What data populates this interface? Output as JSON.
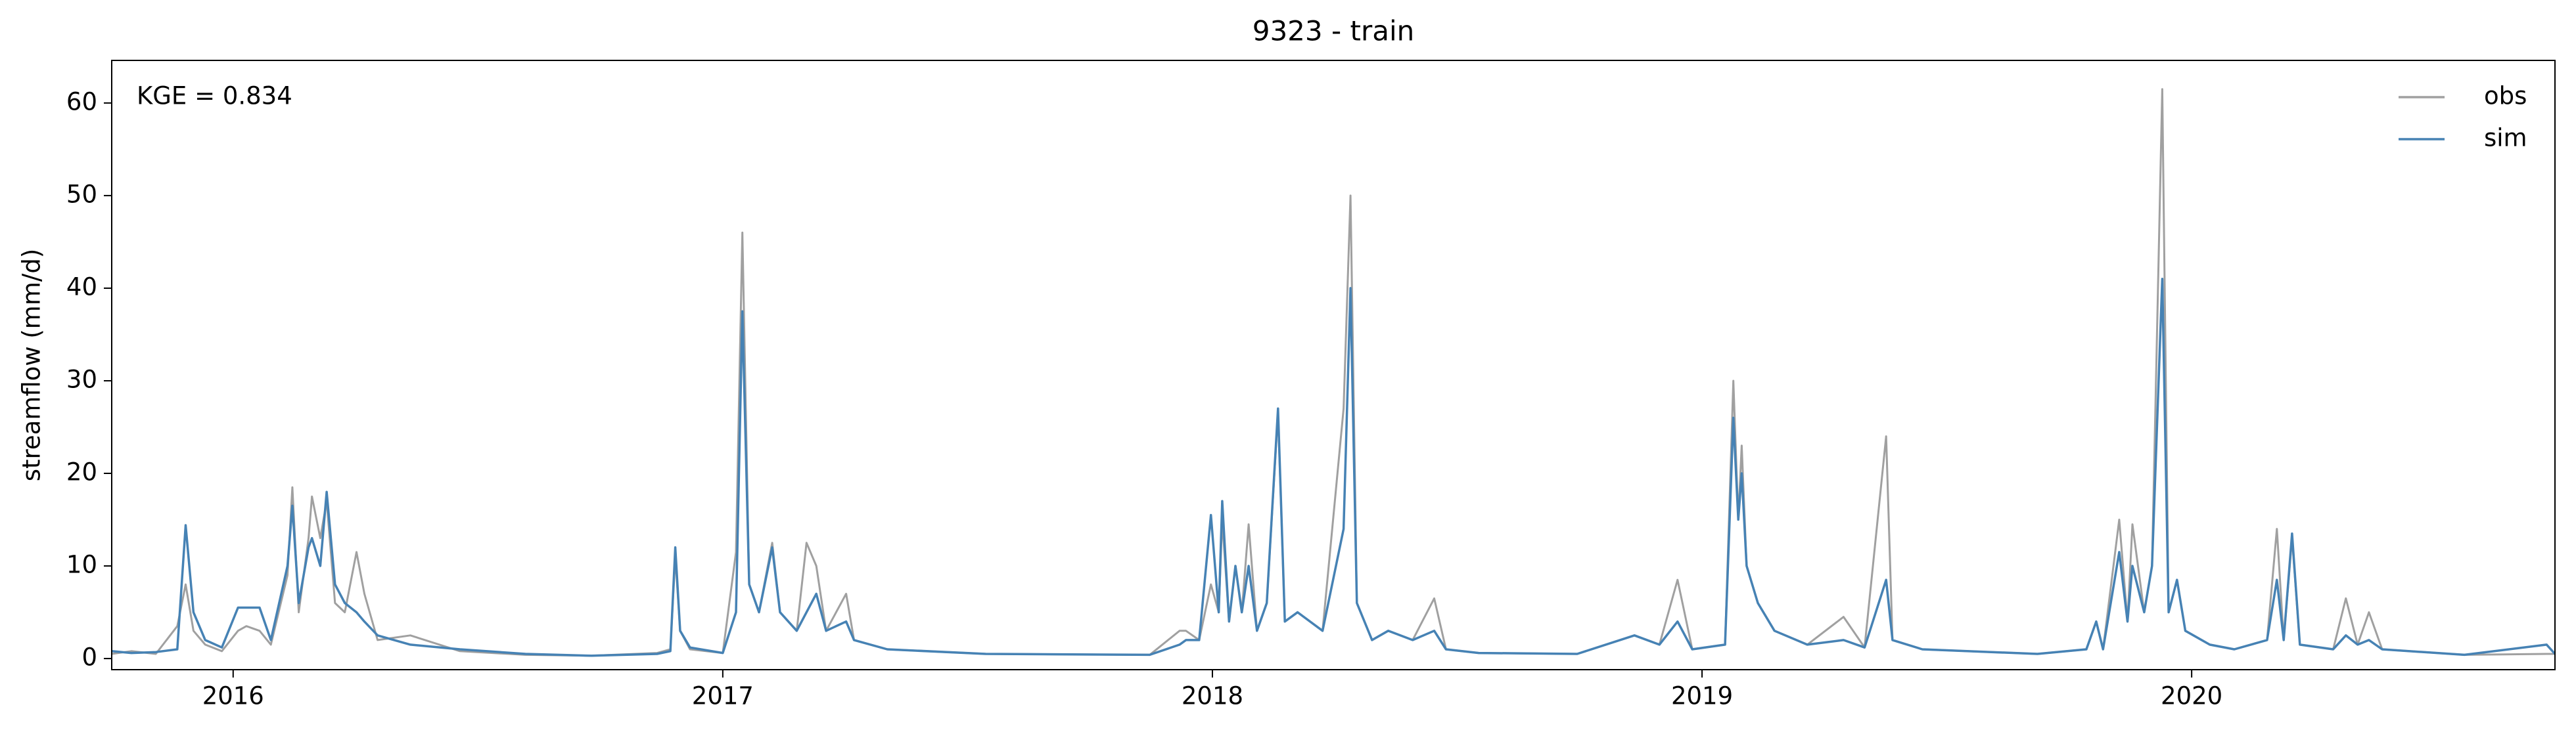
{
  "chart_data": {
    "type": "line",
    "title": "9323 - train",
    "ylabel": "streamflow (mm/d)",
    "annotation": "KGE = 0.834",
    "xlim": [
      2015.752,
      2020.742
    ],
    "xticks": [
      2016,
      2017,
      2018,
      2019,
      2020
    ],
    "ylim": [
      -1.2,
      64.6
    ],
    "yticks": [
      0,
      10,
      20,
      30,
      40,
      50,
      60
    ],
    "legend": "upper right",
    "x": [
      2015.752,
      2015.792,
      2015.842,
      2015.886,
      2015.903,
      2015.919,
      2015.943,
      2015.977,
      2016.01,
      2016.027,
      2016.054,
      2016.077,
      2016.111,
      2016.121,
      2016.134,
      2016.154,
      2016.161,
      2016.178,
      2016.191,
      2016.208,
      2016.228,
      2016.252,
      2016.268,
      2016.295,
      2016.362,
      2016.463,
      2016.597,
      2016.732,
      2016.866,
      2016.893,
      2016.903,
      2016.913,
      2016.933,
      2017.0,
      2017.027,
      2017.04,
      2017.054,
      2017.074,
      2017.101,
      2017.117,
      2017.151,
      2017.171,
      2017.191,
      2017.211,
      2017.252,
      2017.268,
      2017.336,
      2017.537,
      2017.872,
      2017.933,
      2017.946,
      2017.973,
      2017.997,
      2018.013,
      2018.02,
      2018.034,
      2018.047,
      2018.06,
      2018.074,
      2018.091,
      2018.111,
      2018.134,
      2018.148,
      2018.174,
      2018.225,
      2018.268,
      2018.282,
      2018.295,
      2018.326,
      2018.359,
      2018.409,
      2018.453,
      2018.477,
      2018.544,
      2018.745,
      2018.862,
      2018.913,
      2018.95,
      2018.98,
      2019.047,
      2019.064,
      2019.074,
      2019.081,
      2019.091,
      2019.114,
      2019.148,
      2019.215,
      2019.289,
      2019.332,
      2019.376,
      2019.389,
      2019.45,
      2019.685,
      2019.785,
      2019.805,
      2019.819,
      2019.852,
      2019.869,
      2019.879,
      2019.903,
      2019.919,
      2019.94,
      2019.953,
      2019.97,
      2019.987,
      2020.037,
      2020.087,
      2020.154,
      2020.174,
      2020.188,
      2020.205,
      2020.221,
      2020.289,
      2020.315,
      2020.339,
      2020.362,
      2020.389,
      2020.557,
      2020.725,
      2020.742
    ],
    "series": [
      {
        "name": "obs",
        "color": "#a0a0a0",
        "values": [
          0.5,
          0.8,
          0.5,
          3.5,
          8,
          3,
          1.5,
          0.8,
          3,
          3.5,
          3,
          1.5,
          9,
          18.5,
          5,
          13,
          17.5,
          13,
          17,
          6,
          5,
          11.5,
          7,
          2,
          2.5,
          0.8,
          0.4,
          0.3,
          0.6,
          1,
          11,
          3,
          1,
          0.6,
          11.5,
          46,
          8,
          5,
          12.5,
          5,
          3,
          12.5,
          10,
          3,
          7,
          2,
          1,
          0.5,
          0.4,
          3,
          3,
          2,
          8,
          5,
          15,
          4,
          10,
          5,
          14.5,
          3,
          6,
          26.5,
          4,
          5,
          3,
          27,
          50,
          6,
          2,
          3,
          2,
          6.5,
          1,
          0.6,
          0.5,
          2.5,
          1.5,
          8.5,
          1,
          1.5,
          30,
          15,
          23,
          10,
          6,
          3,
          1.5,
          4.5,
          1.2,
          24,
          2,
          1,
          0.5,
          1,
          4,
          1,
          15,
          4,
          14.5,
          5,
          10,
          61.5,
          5,
          8.5,
          3,
          1.5,
          1,
          2,
          14,
          2,
          13,
          1.5,
          1,
          6.5,
          1.5,
          5,
          1,
          0.4,
          0.5,
          0.5
        ]
      },
      {
        "name": "sim",
        "color": "#4682b4",
        "values": [
          0.8,
          0.6,
          0.7,
          1.0,
          14.4,
          5,
          2,
          1.2,
          5.5,
          5.5,
          5.5,
          2,
          10,
          16.5,
          6,
          12,
          13,
          10,
          18,
          8,
          6,
          5,
          4,
          2.5,
          1.5,
          1,
          0.5,
          0.3,
          0.5,
          0.8,
          12,
          3,
          1.2,
          0.6,
          5,
          37.5,
          8,
          5,
          12,
          5,
          3,
          5,
          7,
          3,
          4,
          2,
          1,
          0.5,
          0.4,
          1.5,
          2,
          2,
          15.5,
          5,
          17,
          4,
          10,
          5,
          10,
          3,
          6,
          27,
          4,
          5,
          3,
          14,
          40,
          6,
          2,
          3,
          2,
          3,
          1,
          0.6,
          0.5,
          2.5,
          1.5,
          4,
          1,
          1.5,
          26,
          15,
          20,
          10,
          6,
          3,
          1.5,
          2,
          1.2,
          8.5,
          2,
          1,
          0.5,
          1,
          4,
          1,
          11.5,
          4,
          10,
          5,
          10,
          41,
          5,
          8.5,
          3,
          1.5,
          1,
          2,
          8.5,
          2,
          13.5,
          1.5,
          1,
          2.5,
          1.5,
          2,
          1,
          0.4,
          1.5,
          0.5
        ]
      }
    ]
  }
}
